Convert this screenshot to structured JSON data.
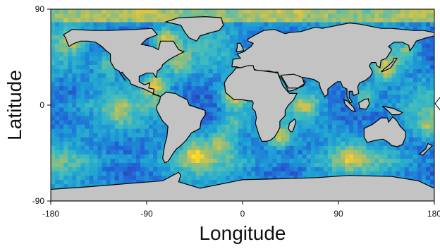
{
  "map": {
    "type": "heatmap",
    "projection": "equirectangular",
    "xlabel": "Longitude",
    "ylabel": "Latitude",
    "xlim": [
      -180,
      180
    ],
    "ylim": [
      -90,
      90
    ],
    "xticks": [
      "-180",
      "-90",
      "0",
      "90",
      "180"
    ],
    "yticks": [
      "90",
      "0",
      "-90"
    ],
    "grid": false,
    "legend": "none",
    "land_color": "#c3c3c3",
    "coastline_color": "#000000",
    "colormap": [
      "#352a87",
      "#1f5fd6",
      "#1aa0d4",
      "#3fbcbd",
      "#a3bd6a",
      "#f2c731",
      "#f9fb0e"
    ]
  }
}
